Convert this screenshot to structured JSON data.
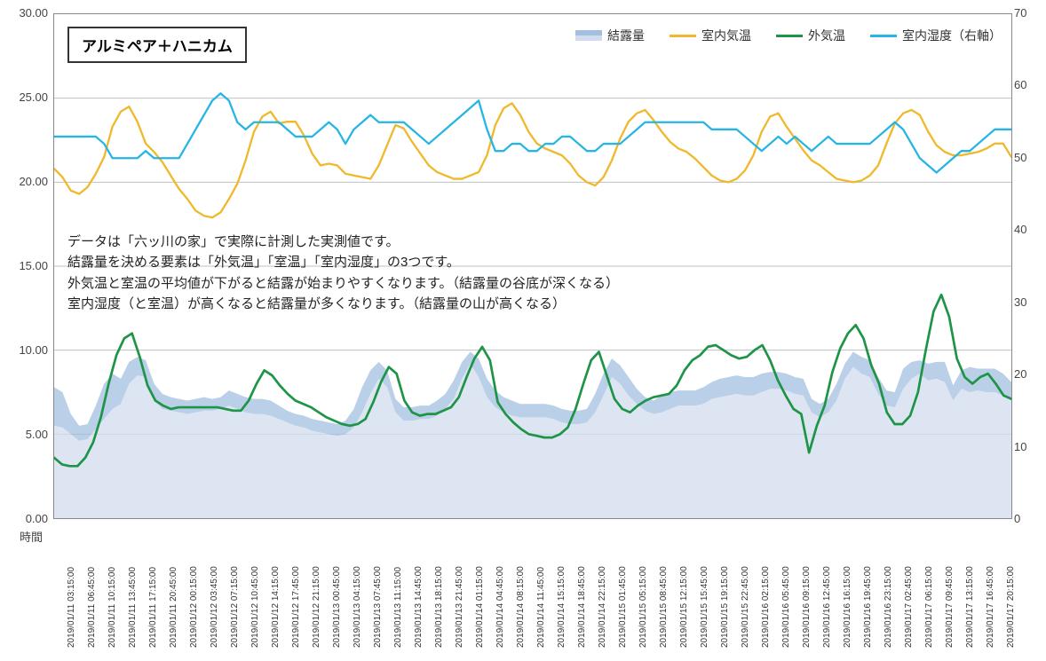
{
  "chart": {
    "type": "line+area",
    "title": "アルミペア＋ハニカム",
    "background_color": "#ffffff",
    "plot_border_color": "#888888",
    "grid_color": "#c0c0c0",
    "left_axis": {
      "min": 0,
      "max": 30,
      "step": 5,
      "decimals": 2,
      "ticks": [
        "0.00",
        "5.00",
        "10.00",
        "15.00",
        "20.00",
        "25.00",
        "30.00"
      ],
      "label_fontsize": 13,
      "label_color": "#444444"
    },
    "right_axis": {
      "min": 0,
      "max": 70,
      "step": 10,
      "ticks": [
        "0",
        "10",
        "20",
        "30",
        "40",
        "50",
        "60",
        "70"
      ],
      "label_fontsize": 13,
      "label_color": "#444444"
    },
    "x_axis": {
      "title": "時間",
      "title_fontsize": 13,
      "label_fontsize": 10,
      "label_rotation": -90,
      "labels": [
        "2019/01/11 03:15:00",
        "2019/01/11 06:45:00",
        "2019/01/11 10:15:00",
        "2019/01/11 13:45:00",
        "2019/01/11 17:15:00",
        "2019/01/11 20:45:00",
        "2019/01/12 00:15:00",
        "2019/01/12 03:45:00",
        "2019/01/12 07:15:00",
        "2019/01/12 10:45:00",
        "2019/01/12 14:15:00",
        "2019/01/12 17:45:00",
        "2019/01/12 21:15:00",
        "2019/01/13 00:45:00",
        "2019/01/13 04:15:00",
        "2019/01/13 07:45:00",
        "2019/01/13 11:15:00",
        "2019/01/13 14:45:00",
        "2019/01/13 18:15:00",
        "2019/01/13 21:45:00",
        "2019/01/14 01:15:00",
        "2019/01/14 04:45:00",
        "2019/01/14 08:15:00",
        "2019/01/14 11:45:00",
        "2019/01/14 15:15:00",
        "2019/01/14 18:45:00",
        "2019/01/14 22:15:00",
        "2019/01/15 01:45:00",
        "2019/01/15 05:15:00",
        "2019/01/15 08:45:00",
        "2019/01/15 12:15:00",
        "2019/01/15 15:45:00",
        "2019/01/15 19:15:00",
        "2019/01/15 22:45:00",
        "2019/01/16 02:15:00",
        "2019/01/16 05:45:00",
        "2019/01/16 09:15:00",
        "2019/01/16 12:45:00",
        "2019/01/16 16:15:00",
        "2019/01/16 19:45:00",
        "2019/01/16 23:15:00",
        "2019/01/17 02:45:00",
        "2019/01/17 06:15:00",
        "2019/01/17 09:45:00",
        "2019/01/17 13:15:00",
        "2019/01/17 16:45:00",
        "2019/01/17 20:15:00"
      ]
    },
    "legend": {
      "position": "top-right",
      "fontsize": 14,
      "items": [
        {
          "label": "結露量",
          "type": "area",
          "colors": [
            "#a3bfe0",
            "#d3dcee"
          ]
        },
        {
          "label": "室内気温",
          "type": "line",
          "color": "#F0B82B"
        },
        {
          "label": "外気温",
          "type": "line",
          "color": "#1E9447"
        },
        {
          "label": "室内湿度（右軸）",
          "type": "line",
          "color": "#26B5E5"
        }
      ]
    },
    "annotation": {
      "fontsize": 15,
      "color": "#222222",
      "lines": [
        "データは「六ッ川の家」で実際に計測した実測値です。",
        "結露量を決める要素は「外気温」「室温」「室内湿度」の3つです。",
        "外気温と室温の平均値が下がると結露が始まりやすくなります。（結露量の谷底が深くなる）",
        "室内湿度（と室温）が高くなると結露量が多くなります。（結露量の山が高くなる）"
      ]
    },
    "series": {
      "condensation_upper": {
        "axis": "left",
        "type": "area",
        "color": "#a3bfe0",
        "opacity": 0.75,
        "values": [
          7.8,
          7.5,
          6.2,
          5.5,
          5.6,
          6.7,
          8.0,
          8.6,
          8.3,
          9.3,
          9.6,
          9.4,
          8.0,
          7.4,
          7.2,
          7.1,
          7.0,
          7.1,
          7.2,
          7.1,
          7.2,
          7.6,
          7.4,
          7.2,
          7.1,
          7.1,
          7.0,
          6.7,
          6.4,
          6.2,
          6.1,
          5.9,
          5.8,
          5.7,
          5.6,
          5.8,
          6.5,
          7.8,
          8.8,
          9.3,
          8.8,
          7.1,
          6.6,
          6.6,
          6.7,
          6.7,
          7.0,
          7.4,
          8.2,
          9.3,
          9.9,
          9.5,
          8.3,
          7.6,
          7.2,
          7.0,
          6.8,
          6.8,
          6.8,
          6.8,
          6.7,
          6.5,
          6.4,
          6.4,
          6.5,
          7.4,
          8.6,
          9.5,
          9.1,
          8.4,
          7.7,
          7.2,
          7.0,
          7.3,
          7.5,
          7.6,
          7.6,
          7.6,
          7.8,
          8.1,
          8.3,
          8.4,
          8.5,
          8.4,
          8.4,
          8.6,
          8.7,
          8.7,
          8.6,
          8.4,
          8.3,
          7.1,
          6.8,
          7.1,
          8.0,
          9.2,
          9.9,
          9.6,
          9.4,
          8.4,
          7.6,
          7.5,
          8.9,
          9.3,
          9.4,
          9.2,
          9.3,
          9.3,
          7.9,
          8.8,
          9.0,
          8.9,
          8.9,
          8.9,
          8.6,
          8.1
        ]
      },
      "condensation_lower": {
        "axis": "left",
        "type": "area",
        "color": "#d3dcee",
        "opacity": 0.75,
        "values": [
          5.5,
          5.4,
          5.0,
          4.6,
          4.7,
          5.3,
          5.9,
          6.5,
          6.8,
          8.0,
          8.5,
          8.4,
          7.0,
          6.5,
          6.4,
          6.3,
          6.2,
          6.3,
          6.4,
          6.4,
          6.5,
          6.7,
          6.5,
          6.3,
          6.2,
          6.2,
          6.1,
          5.9,
          5.7,
          5.5,
          5.4,
          5.2,
          5.1,
          5.0,
          4.9,
          5.0,
          5.4,
          6.3,
          7.4,
          8.3,
          7.8,
          6.3,
          5.8,
          5.8,
          5.9,
          5.9,
          6.1,
          6.5,
          7.1,
          8.3,
          9.2,
          8.4,
          7.2,
          6.6,
          6.3,
          6.1,
          6.0,
          6.0,
          6.0,
          6.0,
          5.9,
          5.7,
          5.6,
          5.6,
          5.7,
          6.3,
          7.3,
          8.4,
          8.0,
          7.3,
          6.8,
          6.4,
          6.2,
          6.3,
          6.5,
          6.7,
          6.7,
          6.7,
          6.8,
          7.1,
          7.2,
          7.3,
          7.4,
          7.3,
          7.3,
          7.5,
          7.7,
          7.7,
          7.6,
          7.4,
          7.3,
          6.3,
          6.0,
          6.3,
          7.0,
          8.3,
          9.0,
          8.6,
          8.4,
          7.4,
          6.7,
          6.6,
          7.7,
          8.3,
          8.6,
          8.2,
          8.3,
          8.1,
          7.0,
          7.7,
          7.5,
          7.6,
          7.5,
          7.5,
          7.3,
          7.1
        ]
      },
      "room_temp": {
        "axis": "left",
        "type": "line",
        "color": "#F0B82B",
        "line_width": 2.3,
        "values": [
          20.8,
          20.3,
          19.5,
          19.3,
          19.7,
          20.5,
          21.5,
          23.3,
          24.2,
          24.5,
          23.6,
          22.3,
          21.8,
          21.2,
          20.4,
          19.6,
          19.0,
          18.3,
          18.0,
          17.9,
          18.2,
          19.0,
          19.9,
          21.3,
          23.0,
          23.9,
          24.2,
          23.5,
          23.6,
          23.6,
          22.8,
          21.7,
          21.0,
          21.1,
          21.0,
          20.5,
          20.4,
          20.3,
          20.2,
          21.0,
          22.2,
          23.4,
          23.2,
          22.4,
          21.7,
          21.0,
          20.6,
          20.4,
          20.2,
          20.2,
          20.4,
          20.6,
          21.6,
          23.4,
          24.4,
          24.7,
          24.0,
          23.0,
          22.3,
          22.0,
          21.8,
          21.6,
          21.1,
          20.4,
          20.0,
          19.8,
          20.3,
          21.3,
          22.6,
          23.6,
          24.1,
          24.3,
          23.7,
          23.0,
          22.4,
          22.0,
          21.8,
          21.4,
          20.9,
          20.4,
          20.1,
          20.0,
          20.2,
          20.7,
          21.6,
          23.0,
          23.9,
          24.1,
          23.3,
          22.6,
          21.9,
          21.3,
          21.0,
          20.6,
          20.2,
          20.1,
          20.0,
          20.1,
          20.4,
          21.0,
          22.3,
          23.5,
          24.1,
          24.3,
          24.0,
          23.0,
          22.2,
          21.8,
          21.6,
          21.6,
          21.7,
          21.8,
          22.0,
          22.3,
          22.3,
          21.5
        ]
      },
      "outdoor_temp": {
        "axis": "left",
        "type": "line",
        "color": "#1E9447",
        "line_width": 2.7,
        "values": [
          3.6,
          3.2,
          3.1,
          3.1,
          3.6,
          4.5,
          6.0,
          8.0,
          9.7,
          10.7,
          11.0,
          9.6,
          7.9,
          7.0,
          6.7,
          6.5,
          6.6,
          6.6,
          6.6,
          6.6,
          6.6,
          6.6,
          6.5,
          6.4,
          6.4,
          7.0,
          8.0,
          8.8,
          8.5,
          7.9,
          7.4,
          7.0,
          6.8,
          6.6,
          6.3,
          6.0,
          5.8,
          5.6,
          5.5,
          5.6,
          5.9,
          6.9,
          8.1,
          9.0,
          8.6,
          7.0,
          6.3,
          6.1,
          6.2,
          6.2,
          6.4,
          6.6,
          7.2,
          8.4,
          9.5,
          10.2,
          9.4,
          6.9,
          6.2,
          5.7,
          5.3,
          5.0,
          4.9,
          4.8,
          4.8,
          5.0,
          5.4,
          6.5,
          8.0,
          9.4,
          9.9,
          8.5,
          7.1,
          6.5,
          6.3,
          6.7,
          7.0,
          7.2,
          7.3,
          7.4,
          7.9,
          8.8,
          9.4,
          9.7,
          10.2,
          10.3,
          10.0,
          9.7,
          9.5,
          9.6,
          10.0,
          10.3,
          9.4,
          8.2,
          7.3,
          6.5,
          6.2,
          3.9,
          5.5,
          6.7,
          8.7,
          10.1,
          11.0,
          11.5,
          10.7,
          9.1,
          8.0,
          6.3,
          5.6,
          5.6,
          6.1,
          7.5,
          10.0,
          12.3,
          13.3,
          12.0,
          9.5,
          8.4,
          8.0,
          8.4,
          8.6,
          8.0,
          7.3,
          7.1
        ]
      },
      "room_humidity": {
        "axis": "right",
        "type": "line",
        "color": "#26B5E5",
        "line_width": 2.3,
        "values": [
          53,
          53,
          53,
          53,
          53,
          53,
          52,
          50,
          50,
          50,
          50,
          51,
          50,
          50,
          50,
          50,
          52,
          54,
          56,
          58,
          59,
          58,
          55,
          54,
          55,
          55,
          55,
          55,
          54,
          53,
          53,
          53,
          54,
          55,
          54,
          52,
          54,
          55,
          56,
          55,
          55,
          55,
          55,
          54,
          53,
          52,
          53,
          54,
          55,
          56,
          57,
          58,
          54,
          51,
          51,
          52,
          52,
          51,
          51,
          52,
          52,
          53,
          53,
          52,
          51,
          51,
          52,
          52,
          52,
          53,
          54,
          55,
          55,
          55,
          55,
          55,
          55,
          55,
          55,
          54,
          54,
          54,
          54,
          53,
          52,
          51,
          52,
          53,
          52,
          53,
          52,
          51,
          52,
          53,
          52,
          52,
          52,
          52,
          52,
          53,
          54,
          55,
          54,
          52,
          50,
          49,
          48,
          49,
          50,
          51,
          51,
          52,
          53,
          54,
          54,
          54
        ]
      }
    }
  }
}
